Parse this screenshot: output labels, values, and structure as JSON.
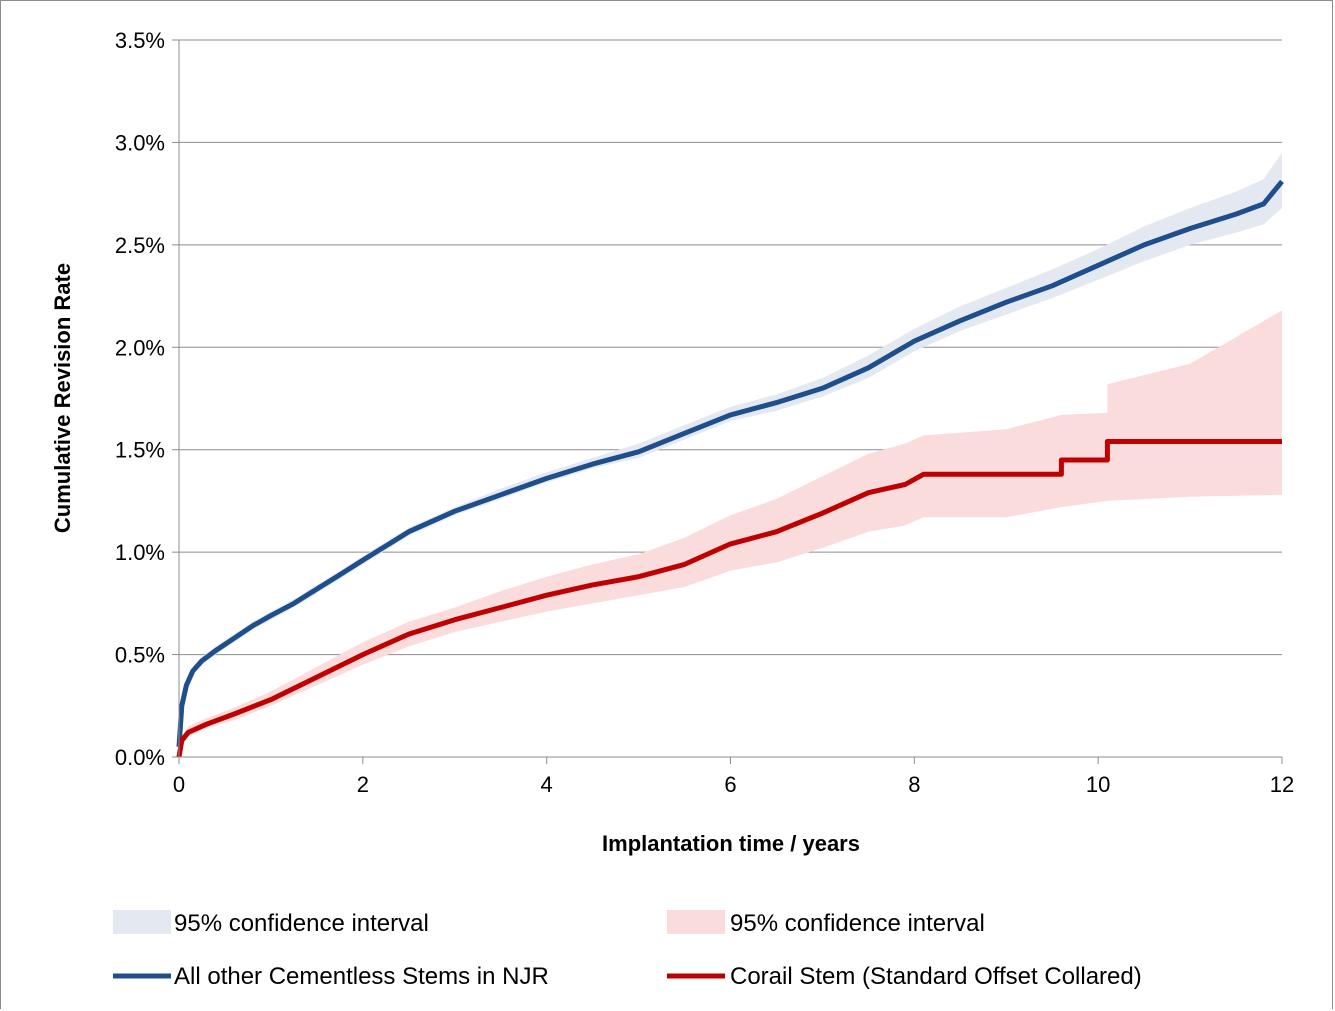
{
  "chart_data": {
    "type": "line",
    "title": "",
    "xlabel": "Implantation time  / years",
    "ylabel": "Cumulative Revision Rate",
    "xlim": [
      0,
      12
    ],
    "ylim": [
      0,
      0.035
    ],
    "x_ticks": [
      0,
      2,
      4,
      6,
      8,
      10,
      12
    ],
    "x_tick_labels": [
      "0",
      "2",
      "4",
      "6",
      "8",
      "10",
      "12"
    ],
    "y_ticks": [
      0,
      0.005,
      0.01,
      0.015,
      0.02,
      0.025,
      0.03,
      0.035
    ],
    "y_tick_labels": [
      "0.0%",
      "0.5%",
      "1.0%",
      "1.5%",
      "2.0%",
      "2.5%",
      "3.0%",
      "3.5%"
    ],
    "grid": "horizontal",
    "legend_position": "bottom",
    "colors": {
      "all_other_line": "#1f4e8c",
      "all_other_ci": "#e4e9f1",
      "corail_line": "#c00000",
      "corail_ci": "#fbdcdc",
      "grid": "#8c8c8c"
    },
    "series": [
      {
        "name": "All other Cementless Stems in NJR",
        "role": "line",
        "x": [
          0,
          0.03,
          0.08,
          0.15,
          0.25,
          0.4,
          0.6,
          0.8,
          1.0,
          1.25,
          1.5,
          1.75,
          2.0,
          2.25,
          2.5,
          3.0,
          3.5,
          4.0,
          4.5,
          5.0,
          5.5,
          6.0,
          6.5,
          7.0,
          7.5,
          8.0,
          8.5,
          9.0,
          9.5,
          10.0,
          10.5,
          11.0,
          11.5,
          11.8,
          12.0
        ],
        "y": [
          0.0005,
          0.0025,
          0.0035,
          0.0042,
          0.0047,
          0.0052,
          0.0058,
          0.0064,
          0.0069,
          0.0075,
          0.0082,
          0.0089,
          0.0096,
          0.0103,
          0.011,
          0.012,
          0.0128,
          0.0136,
          0.0143,
          0.0149,
          0.0158,
          0.0167,
          0.0173,
          0.018,
          0.019,
          0.0203,
          0.0213,
          0.0222,
          0.023,
          0.024,
          0.025,
          0.0258,
          0.0265,
          0.027,
          0.0281
        ]
      },
      {
        "name": "95% confidence interval",
        "role": "ci",
        "x": [
          0,
          0.03,
          0.08,
          0.15,
          0.25,
          0.4,
          0.6,
          0.8,
          1.0,
          1.25,
          1.5,
          1.75,
          2.0,
          2.25,
          2.5,
          3.0,
          3.5,
          4.0,
          4.5,
          5.0,
          5.5,
          6.0,
          6.5,
          7.0,
          7.5,
          8.0,
          8.5,
          9.0,
          9.5,
          10.0,
          10.5,
          11.0,
          11.5,
          11.8,
          12.0
        ],
        "lower": [
          0.0004,
          0.0024,
          0.0033,
          0.004,
          0.0045,
          0.005,
          0.0056,
          0.0062,
          0.0067,
          0.0073,
          0.008,
          0.0087,
          0.0094,
          0.0101,
          0.0108,
          0.0118,
          0.0126,
          0.0134,
          0.0141,
          0.0146,
          0.0155,
          0.0164,
          0.0169,
          0.0176,
          0.0185,
          0.0198,
          0.0208,
          0.0216,
          0.0224,
          0.0233,
          0.0242,
          0.025,
          0.0256,
          0.026,
          0.0268
        ],
        "upper": [
          0.0006,
          0.0026,
          0.0037,
          0.0044,
          0.0049,
          0.0054,
          0.006,
          0.0066,
          0.0071,
          0.0077,
          0.0084,
          0.0091,
          0.0098,
          0.0105,
          0.0112,
          0.0122,
          0.0131,
          0.0139,
          0.0146,
          0.0153,
          0.0162,
          0.0171,
          0.0177,
          0.0185,
          0.0196,
          0.0209,
          0.022,
          0.0229,
          0.0238,
          0.0248,
          0.0259,
          0.0268,
          0.0276,
          0.0282,
          0.0295
        ]
      },
      {
        "name": "Corail Stem (Standard Offset Collared)",
        "role": "line",
        "x": [
          0,
          0.03,
          0.1,
          0.3,
          0.6,
          1.0,
          1.5,
          2.0,
          2.5,
          3.0,
          3.5,
          4.0,
          4.5,
          5.0,
          5.5,
          6.0,
          6.5,
          7.0,
          7.5,
          7.9,
          8.1,
          9.6,
          9.6,
          10.1,
          10.1,
          12.0
        ],
        "y": [
          0.0,
          0.0008,
          0.0012,
          0.0016,
          0.0021,
          0.0028,
          0.0039,
          0.005,
          0.006,
          0.0067,
          0.0073,
          0.0079,
          0.0084,
          0.0088,
          0.0094,
          0.0104,
          0.011,
          0.0119,
          0.0129,
          0.0133,
          0.0138,
          0.0138,
          0.0145,
          0.0145,
          0.0154,
          0.0154
        ]
      },
      {
        "name": "95% confidence interval",
        "role": "ci",
        "x": [
          0,
          0.03,
          0.1,
          0.3,
          0.6,
          1.0,
          1.5,
          2.0,
          2.5,
          3.0,
          3.5,
          4.0,
          4.5,
          5.0,
          5.5,
          6.0,
          6.5,
          7.0,
          7.5,
          7.9,
          8.1,
          9.0,
          9.6,
          10.1,
          10.1,
          11.0,
          12.0
        ],
        "lower": [
          0.0,
          0.0006,
          0.001,
          0.0014,
          0.0018,
          0.0025,
          0.0035,
          0.0045,
          0.0054,
          0.0061,
          0.0066,
          0.0071,
          0.0075,
          0.0079,
          0.0083,
          0.0091,
          0.0095,
          0.0102,
          0.011,
          0.0113,
          0.0117,
          0.0117,
          0.0122,
          0.0125,
          0.0125,
          0.0127,
          0.0128
        ],
        "upper": [
          0.0,
          0.001,
          0.0015,
          0.0019,
          0.0024,
          0.0032,
          0.0044,
          0.0056,
          0.0066,
          0.0073,
          0.0081,
          0.0088,
          0.0094,
          0.0099,
          0.0107,
          0.0118,
          0.0126,
          0.0137,
          0.0148,
          0.0153,
          0.0157,
          0.016,
          0.0167,
          0.0168,
          0.0182,
          0.0192,
          0.0218
        ]
      }
    ],
    "legend": {
      "all_other_ci": "95% confidence interval",
      "corail_ci": "95% confidence interval",
      "all_other_line": "All other Cementless Stems in NJR",
      "corail_line": "Corail Stem (Standard Offset Collared)"
    }
  }
}
